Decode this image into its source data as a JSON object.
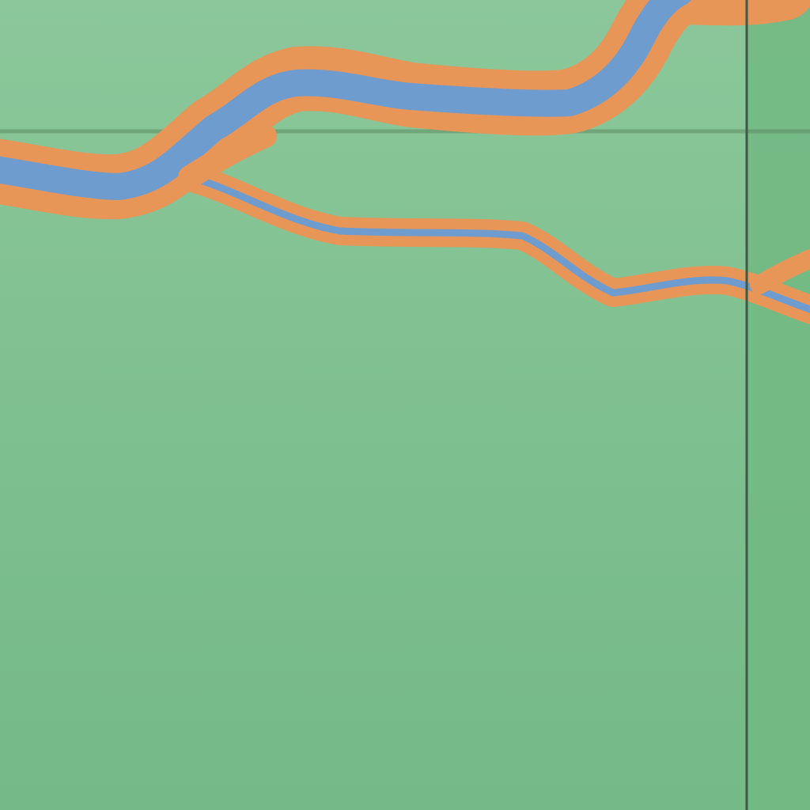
{
  "map": {
    "colors": {
      "land_top": "#8bc79a",
      "land_bottom": "#74b986",
      "land_right_panel": "#72b883",
      "water": "#6f9ccf",
      "river_bank": "#e89558",
      "grid_line": "#5f8d63",
      "divider_line": "#3f5a44"
    },
    "features": [
      {
        "name": "river-upper-channel",
        "kind": "river"
      },
      {
        "name": "river-lower-branch",
        "kind": "river"
      },
      {
        "name": "grid-line-horizontal",
        "kind": "grid"
      },
      {
        "name": "panel-divider-vertical",
        "kind": "divider"
      }
    ]
  }
}
